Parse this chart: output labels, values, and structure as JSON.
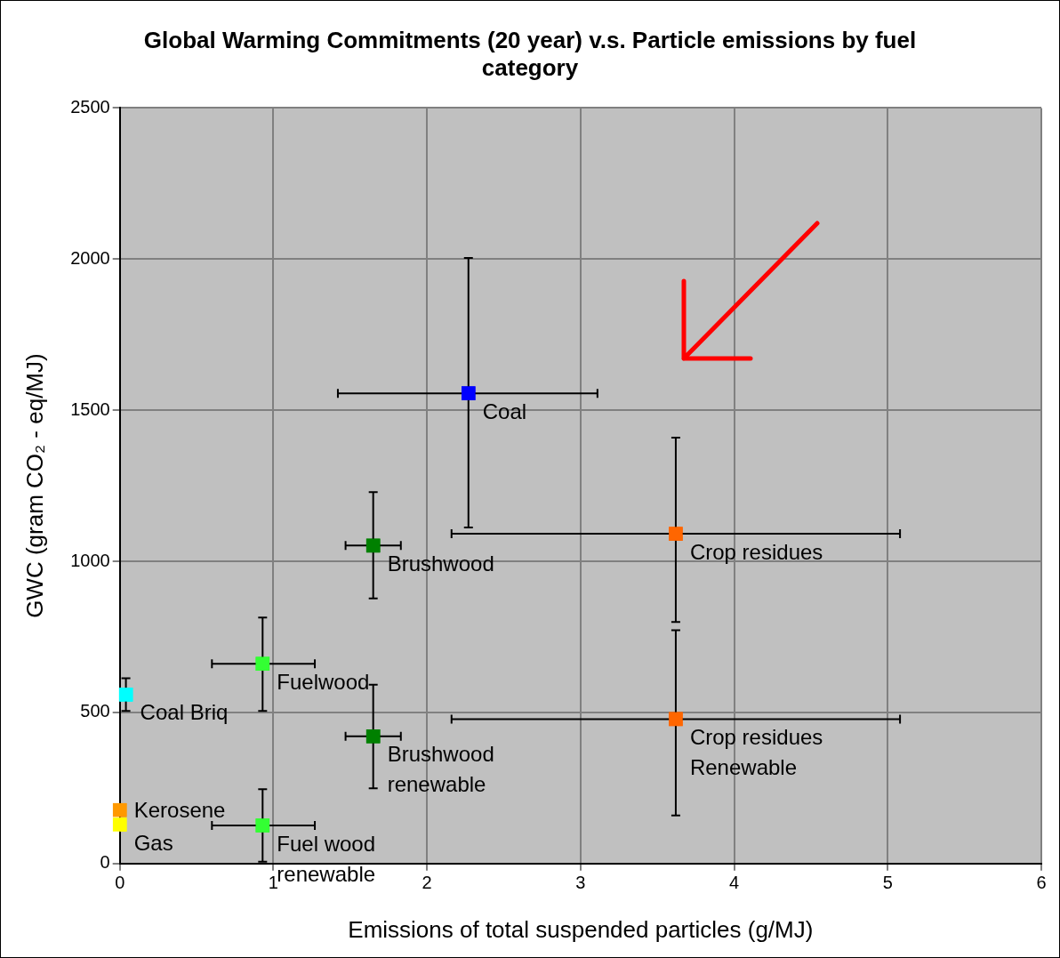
{
  "chart_data": {
    "type": "scatter",
    "title": "Global Warming Commitments (20 year) v.s. Particle emissions by fuel category",
    "xlabel": "Emissions of total suspended particles (g/MJ)",
    "ylabel": "GWC (gram CO₂ - eq/MJ)",
    "xlim": [
      0,
      6
    ],
    "xticks": [
      0,
      1,
      2,
      3,
      4,
      5,
      6
    ],
    "ylim": [
      0,
      2500
    ],
    "yticks": [
      0,
      500,
      1000,
      1500,
      2000,
      2500
    ],
    "grid": true,
    "legend": false,
    "marker": "square",
    "series": [
      {
        "x": [
          2.27,
          3.62,
          1.65,
          0.93,
          0.04,
          1.65,
          3.62,
          0,
          0,
          0.93
        ],
        "values": [
          1556,
          1091,
          1052,
          661,
          559,
          421,
          478,
          177,
          129,
          126
        ],
        "colors": [
          "#0000ff",
          "#ff6600",
          "#008000",
          "#33ff33",
          "#00ffff",
          "#008000",
          "#ff6600",
          "#ff9900",
          "#ffff00",
          "#33ff33"
        ],
        "errors": [
          [
            1112,
            2004
          ],
          [
            799,
            1409
          ],
          [
            877,
            1229
          ],
          [
            505,
            814
          ],
          [
            505,
            613
          ],
          [
            249,
            592
          ],
          [
            159,
            772
          ],
          null,
          null,
          [
            6,
            246
          ]
        ],
        "xerrors": [
          [
            1.42,
            3.11
          ],
          [
            2.16,
            5.08
          ],
          [
            1.47,
            1.83
          ],
          [
            0.6,
            1.27
          ],
          null,
          [
            1.47,
            1.83
          ],
          [
            2.16,
            5.08
          ],
          null,
          null,
          [
            0.6,
            1.27
          ]
        ]
      }
    ],
    "annotations": [
      {
        "text": "Coal",
        "x": 2.27,
        "y": 1556
      },
      {
        "text": "Crop residues",
        "x": 3.62,
        "y": 1091
      },
      {
        "text": "Brushwood",
        "x": 1.65,
        "y": 1052
      },
      {
        "text": "Fuelwood",
        "x": 0.93,
        "y": 661
      },
      {
        "text": "Coal Briq",
        "x": 0.04,
        "y": 559
      },
      {
        "text": "Brushwood renewable",
        "x": 1.65,
        "y": 421
      },
      {
        "text": "Crop residues Renewable",
        "x": 3.62,
        "y": 478
      },
      {
        "text": "Kerosene",
        "x": 0,
        "y": 177
      },
      {
        "text": "Gas",
        "x": 0,
        "y": 129
      },
      {
        "text": "Fuel wood renewable",
        "x": 0.93,
        "y": 126
      }
    ]
  }
}
